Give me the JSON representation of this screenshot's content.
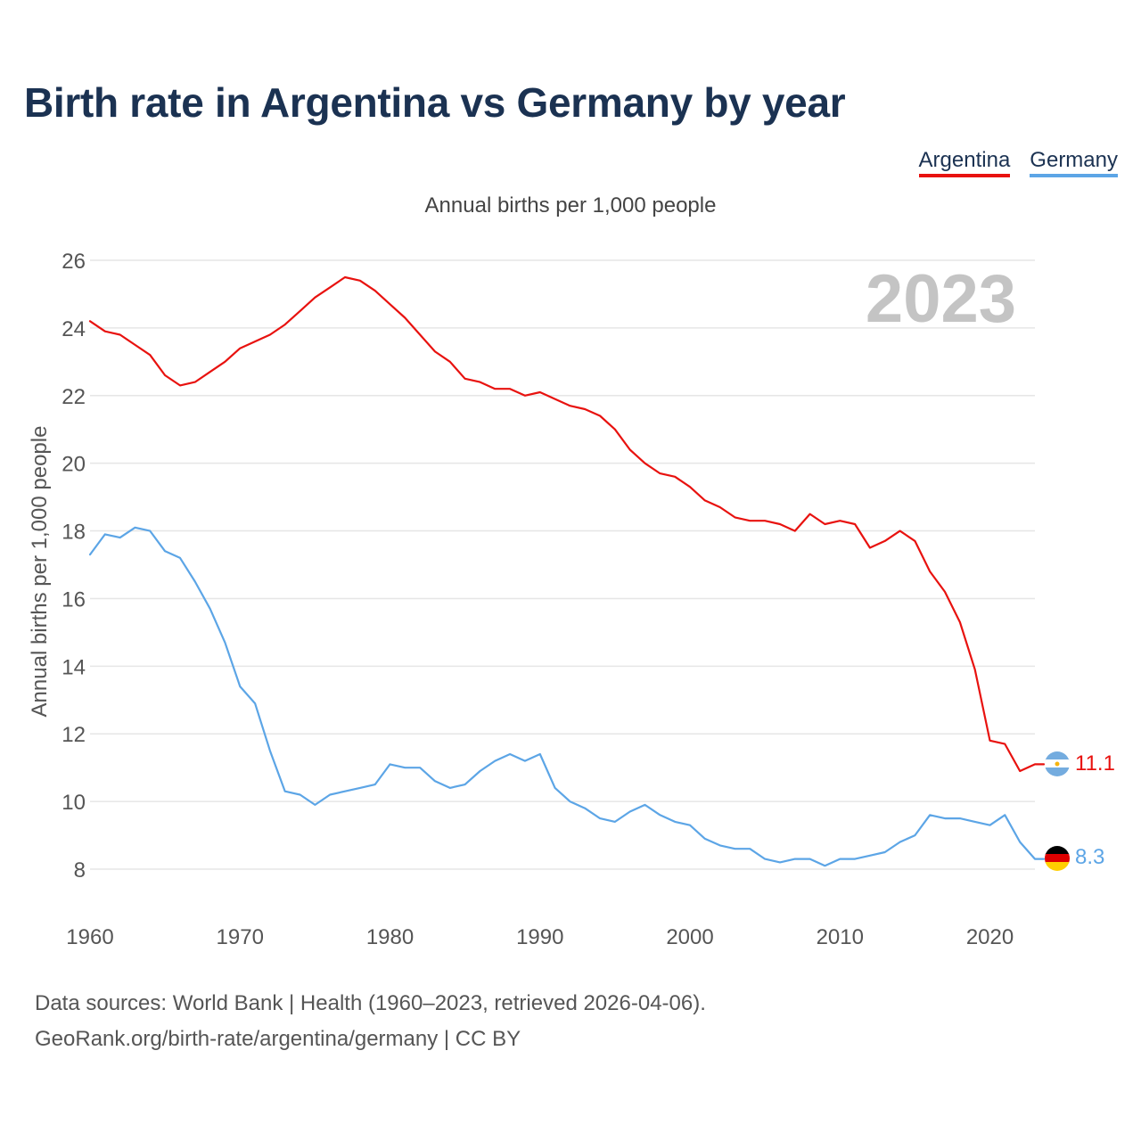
{
  "title": "Birth rate in Argentina vs Germany by year",
  "legend": {
    "argentina": "Argentina",
    "germany": "Germany"
  },
  "subtitle": "Annual births per 1,000 people",
  "source": {
    "line1": "Data sources: World Bank | Health (1960–2023, retrieved 2026-04-06).",
    "line2": "GeoRank.org/birth-rate/argentina/germany | CC BY"
  },
  "chart_data": {
    "type": "line",
    "title": "Birth rate in Argentina vs Germany by year",
    "ylabel": "Annual births per 1,000 people",
    "xlabel": "",
    "year_label": "2023",
    "xlim": [
      1960,
      2023
    ],
    "ylim": [
      7,
      26
    ],
    "x_ticks": [
      1960,
      1970,
      1980,
      1990,
      2000,
      2010,
      2020
    ],
    "y_ticks": [
      8,
      10,
      12,
      14,
      16,
      18,
      20,
      22,
      24,
      26
    ],
    "x": [
      1960,
      1961,
      1962,
      1963,
      1964,
      1965,
      1966,
      1967,
      1968,
      1969,
      1970,
      1971,
      1972,
      1973,
      1974,
      1975,
      1976,
      1977,
      1978,
      1979,
      1980,
      1981,
      1982,
      1983,
      1984,
      1985,
      1986,
      1987,
      1988,
      1989,
      1990,
      1991,
      1992,
      1993,
      1994,
      1995,
      1996,
      1997,
      1998,
      1999,
      2000,
      2001,
      2002,
      2003,
      2004,
      2005,
      2006,
      2007,
      2008,
      2009,
      2010,
      2011,
      2012,
      2013,
      2014,
      2015,
      2016,
      2017,
      2018,
      2019,
      2020,
      2021,
      2022,
      2023
    ],
    "series": [
      {
        "name": "Argentina",
        "color": "#e8120f",
        "end_label": "11.1",
        "values": [
          24.2,
          23.9,
          23.8,
          23.5,
          23.2,
          22.6,
          22.3,
          22.4,
          22.7,
          23.0,
          23.4,
          23.6,
          23.8,
          24.1,
          24.5,
          24.9,
          25.2,
          25.5,
          25.4,
          25.1,
          24.7,
          24.3,
          23.8,
          23.3,
          23.0,
          22.5,
          22.4,
          22.2,
          22.2,
          22.0,
          22.1,
          21.9,
          21.7,
          21.6,
          21.4,
          21.0,
          20.4,
          20.0,
          19.7,
          19.6,
          19.3,
          18.9,
          18.7,
          18.4,
          18.3,
          18.3,
          18.2,
          18.0,
          18.5,
          18.2,
          18.3,
          18.2,
          17.5,
          17.7,
          18.0,
          17.7,
          16.8,
          16.2,
          15.3,
          13.9,
          11.8,
          11.7,
          10.9,
          11.1
        ]
      },
      {
        "name": "Germany",
        "color": "#5ca5e6",
        "end_label": "8.3",
        "values": [
          17.3,
          17.9,
          17.8,
          18.1,
          18.0,
          17.4,
          17.2,
          16.5,
          15.7,
          14.7,
          13.4,
          12.9,
          11.5,
          10.3,
          10.2,
          9.9,
          10.2,
          10.3,
          10.4,
          10.5,
          11.1,
          11.0,
          11.0,
          10.6,
          10.4,
          10.5,
          10.9,
          11.2,
          11.4,
          11.2,
          11.4,
          10.4,
          10.0,
          9.8,
          9.5,
          9.4,
          9.7,
          9.9,
          9.6,
          9.4,
          9.3,
          8.9,
          8.7,
          8.6,
          8.6,
          8.3,
          8.2,
          8.3,
          8.3,
          8.1,
          8.3,
          8.3,
          8.4,
          8.5,
          8.8,
          9.0,
          9.6,
          9.5,
          9.5,
          9.4,
          9.3,
          9.6,
          8.8,
          8.3
        ]
      }
    ]
  }
}
